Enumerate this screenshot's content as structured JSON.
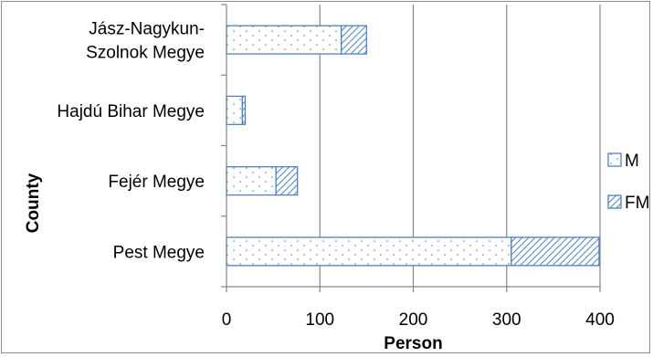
{
  "chart_data": {
    "type": "bar",
    "orientation": "horizontal",
    "stacked": true,
    "categories": [
      "Pest Megye",
      "Fejér Megye",
      "Hajdú Bihar Megye",
      "Jász-Nagykun-Szolnok Megye"
    ],
    "category_display": [
      [
        "Pest Megye"
      ],
      [
        "Fejér Megye"
      ],
      [
        "Hajdú Bihar Megye"
      ],
      [
        "Jász-Nagykun-",
        "Szolnok Megye"
      ]
    ],
    "series": [
      {
        "name": "M",
        "values": [
          305,
          53,
          17,
          123
        ],
        "pattern": "dots"
      },
      {
        "name": "FM",
        "values": [
          94,
          23,
          3,
          27
        ],
        "pattern": "diagonal"
      }
    ],
    "xlabel": "Person",
    "ylabel": "County",
    "xlim": [
      0,
      400
    ],
    "xticks": [
      "0",
      "100",
      "200",
      "300",
      "400"
    ],
    "grid": "vertical",
    "legend_position": "right",
    "colors": {
      "bar_border": "#4f81bd",
      "pattern": "#4f81bd",
      "grid": "#868686",
      "axis": "#868686"
    }
  }
}
